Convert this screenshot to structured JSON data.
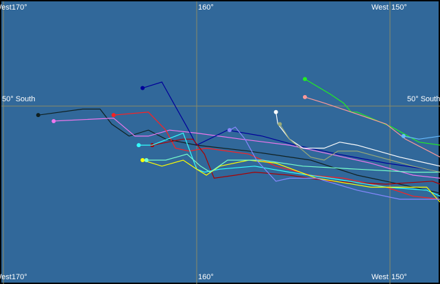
{
  "map": {
    "background": "#31689a",
    "grid_color": "#8a8a66",
    "lon_labels": {
      "left": "West170°",
      "center": "160°",
      "right_prefix": "West",
      "right": "150°"
    },
    "lat_label": "50° South",
    "gridlines": {
      "lon_west": [
        170,
        160,
        150
      ],
      "lat_south": [
        50
      ]
    }
  },
  "tracks": [
    {
      "color": "#102020",
      "points": [
        [
          168.2,
          50.3
        ],
        [
          165.9,
          50.1
        ],
        [
          165.0,
          50.1
        ],
        [
          164.4,
          50.6
        ],
        [
          163.5,
          51.0
        ],
        [
          162.5,
          50.8
        ],
        [
          161.6,
          51.1
        ],
        [
          160.0,
          51.3
        ],
        [
          157.3,
          51.5
        ],
        [
          154.1,
          51.8
        ],
        [
          151.7,
          52.3
        ],
        [
          149.5,
          52.6
        ],
        [
          147.4,
          52.9
        ]
      ]
    },
    {
      "color": "#ee77ee",
      "points": [
        [
          167.4,
          50.5
        ],
        [
          164.3,
          50.4
        ],
        [
          163.2,
          51.0
        ],
        [
          162.5,
          51.0
        ],
        [
          161.4,
          50.8
        ],
        [
          160.0,
          50.9
        ],
        [
          157.7,
          51.1
        ],
        [
          155.2,
          51.3
        ],
        [
          153.1,
          51.6
        ],
        [
          151.0,
          51.9
        ],
        [
          148.8,
          52.3
        ],
        [
          147.4,
          52.4
        ]
      ]
    },
    {
      "color": "#ff2020",
      "points": [
        [
          164.3,
          50.3
        ],
        [
          162.5,
          50.2
        ],
        [
          161.6,
          50.8
        ],
        [
          161.1,
          51.4
        ],
        [
          160.4,
          51.5
        ],
        [
          159.5,
          51.4
        ],
        [
          157.3,
          51.6
        ],
        [
          155.9,
          52.0
        ],
        [
          154.1,
          52.3
        ],
        [
          152.4,
          52.4
        ],
        [
          150.2,
          52.7
        ],
        [
          148.8,
          53.0
        ],
        [
          147.4,
          53.1
        ]
      ]
    },
    {
      "color": "#000099",
      "points": [
        [
          162.8,
          49.4
        ],
        [
          161.8,
          49.2
        ],
        [
          161.2,
          49.9
        ],
        [
          160.5,
          50.7
        ],
        [
          160.0,
          51.3
        ],
        [
          158.4,
          50.8
        ],
        [
          156.6,
          51.0
        ],
        [
          154.9,
          51.3
        ],
        [
          152.7,
          51.6
        ],
        [
          150.2,
          51.9
        ],
        [
          148.1,
          52.1
        ],
        [
          147.4,
          52.2
        ]
      ]
    },
    {
      "color": "#aa0000",
      "points": [
        [
          162.3,
          51.3
        ],
        [
          160.7,
          51.1
        ],
        [
          160.2,
          51.1
        ],
        [
          159.6,
          51.6
        ],
        [
          159.1,
          52.4
        ],
        [
          158.0,
          52.3
        ],
        [
          157.0,
          52.2
        ],
        [
          155.2,
          52.3
        ],
        [
          153.1,
          52.5
        ],
        [
          150.2,
          52.6
        ],
        [
          147.8,
          52.5
        ],
        [
          147.4,
          52.6
        ]
      ]
    },
    {
      "color": "#33ffff",
      "points": [
        [
          163.0,
          51.3
        ],
        [
          162.3,
          51.3
        ],
        [
          160.7,
          50.9
        ],
        [
          160.0,
          52.1
        ],
        [
          159.6,
          52.2
        ],
        [
          158.8,
          52.1
        ],
        [
          157.0,
          52.0
        ],
        [
          155.2,
          52.2
        ],
        [
          153.1,
          52.4
        ],
        [
          150.2,
          52.7
        ],
        [
          148.1,
          52.8
        ],
        [
          147.4,
          53.0
        ]
      ]
    },
    {
      "color": "#ffff00",
      "points": [
        [
          162.8,
          51.8
        ],
        [
          161.8,
          52.0
        ],
        [
          160.7,
          51.8
        ],
        [
          160.0,
          52.1
        ],
        [
          159.5,
          52.3
        ],
        [
          158.8,
          52.0
        ],
        [
          157.3,
          51.8
        ],
        [
          155.9,
          51.9
        ],
        [
          153.8,
          52.4
        ],
        [
          151.0,
          52.7
        ],
        [
          148.1,
          52.7
        ],
        [
          147.4,
          53.2
        ]
      ]
    },
    {
      "color": "#77ffcc",
      "points": [
        [
          162.6,
          51.8
        ],
        [
          161.6,
          51.8
        ],
        [
          160.5,
          51.6
        ],
        [
          159.8,
          52.0
        ],
        [
          159.3,
          52.2
        ],
        [
          158.4,
          51.8
        ],
        [
          156.6,
          51.8
        ],
        [
          154.5,
          52.0
        ],
        [
          151.7,
          52.1
        ],
        [
          148.8,
          52.2
        ],
        [
          147.4,
          52.2
        ]
      ]
    },
    {
      "color": "#8888ff",
      "points": [
        [
          158.3,
          50.8
        ],
        [
          158.0,
          50.7
        ],
        [
          157.5,
          51.1
        ],
        [
          156.9,
          51.8
        ],
        [
          155.9,
          52.5
        ],
        [
          155.2,
          52.4
        ],
        [
          153.8,
          52.4
        ],
        [
          151.7,
          52.8
        ],
        [
          149.5,
          53.1
        ],
        [
          147.4,
          53.1
        ]
      ]
    },
    {
      "color": "#ffffff",
      "points": [
        [
          155.9,
          50.2
        ],
        [
          155.8,
          50.6
        ],
        [
          155.2,
          51.1
        ],
        [
          154.5,
          51.4
        ],
        [
          153.4,
          51.4
        ],
        [
          152.6,
          51.2
        ],
        [
          151.7,
          51.3
        ],
        [
          149.5,
          51.7
        ],
        [
          147.4,
          52.0
        ]
      ]
    },
    {
      "color": "#99aa77",
      "points": [
        [
          155.7,
          50.6
        ],
        [
          155.2,
          51.1
        ],
        [
          154.1,
          51.7
        ],
        [
          153.4,
          51.8
        ],
        [
          152.7,
          51.5
        ],
        [
          151.7,
          51.5
        ],
        [
          148.8,
          52.0
        ],
        [
          147.4,
          52.2
        ]
      ]
    },
    {
      "color": "#22ee22",
      "points": [
        [
          154.4,
          49.1
        ],
        [
          153.1,
          49.6
        ],
        [
          152.4,
          49.9
        ],
        [
          152.0,
          50.2
        ],
        [
          151.7,
          50.2
        ],
        [
          149.9,
          50.7
        ],
        [
          148.5,
          51.2
        ],
        [
          147.4,
          51.3
        ]
      ]
    },
    {
      "color": "#ff9999",
      "points": [
        [
          154.4,
          49.7
        ],
        [
          153.4,
          49.9
        ],
        [
          152.0,
          50.2
        ],
        [
          150.2,
          50.6
        ],
        [
          149.2,
          51.1
        ],
        [
          147.4,
          51.7
        ]
      ]
    },
    {
      "color": "#66bbff",
      "points": [
        [
          149.3,
          51.0
        ],
        [
          148.5,
          51.1
        ],
        [
          147.4,
          51.0
        ]
      ]
    }
  ]
}
